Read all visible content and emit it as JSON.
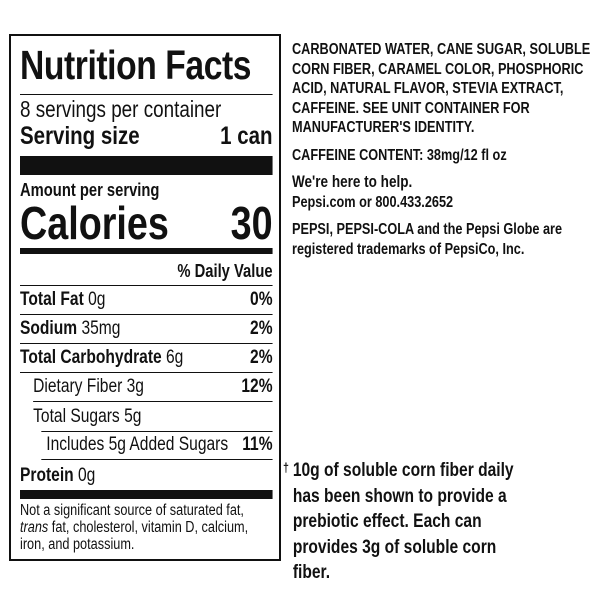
{
  "label": {
    "title": "Nutrition Facts",
    "servings": "8 servings per container",
    "serving_size_label": "Serving size",
    "serving_size_value": "1 can",
    "amount_per_serving": "Amount per serving",
    "calories_label": "Calories",
    "calories_value": "30",
    "daily_value_header": "% Daily Value",
    "nutrients": [
      {
        "name": "Total Fat",
        "amount": "0g",
        "dv": "0%"
      },
      {
        "name": "Sodium",
        "amount": "35mg",
        "dv": "2%"
      },
      {
        "name": "Total Carbohydrate",
        "amount": "6g",
        "dv": "2%"
      },
      {
        "name": "Dietary Fiber",
        "amount": "3g",
        "dv": "12%"
      },
      {
        "name": "Total Sugars",
        "amount": "5g",
        "dv": ""
      },
      {
        "name": "Includes 5g Added Sugars",
        "amount": "",
        "dv": "11%"
      },
      {
        "name": "Protein",
        "amount": "0g",
        "dv": ""
      }
    ],
    "footnote_pre": "Not a significant source of saturated fat,",
    "footnote_italic": "trans",
    "footnote_post": "fat, cholesterol, vitamin D, calcium, iron, and potassium."
  },
  "info": {
    "ingredients": "CARBONATED WATER, CANE SUGAR, SOLUBLE CORN FIBER, CARAMEL COLOR, PHOSPHORIC ACID, NATURAL FLAVOR, STEVIA EXTRACT, CAFFEINE. SEE UNIT CONTAINER FOR MANUFACTURER'S IDENTITY.",
    "caffeine": "CAFFEINE CONTENT: 38mg/12 fl oz",
    "help_heading": "We're here to help.",
    "contact": "Pepsi.com or 800.433.2652",
    "trademark": "PEPSI, PEPSI-COLA and the Pepsi Globe are registered trademarks of PepsiCo, Inc.",
    "dagger": "†",
    "fiber_note": "10g of soluble corn fiber daily has been shown to provide a prebiotic effect. Each can provides 3g of soluble corn fiber."
  }
}
